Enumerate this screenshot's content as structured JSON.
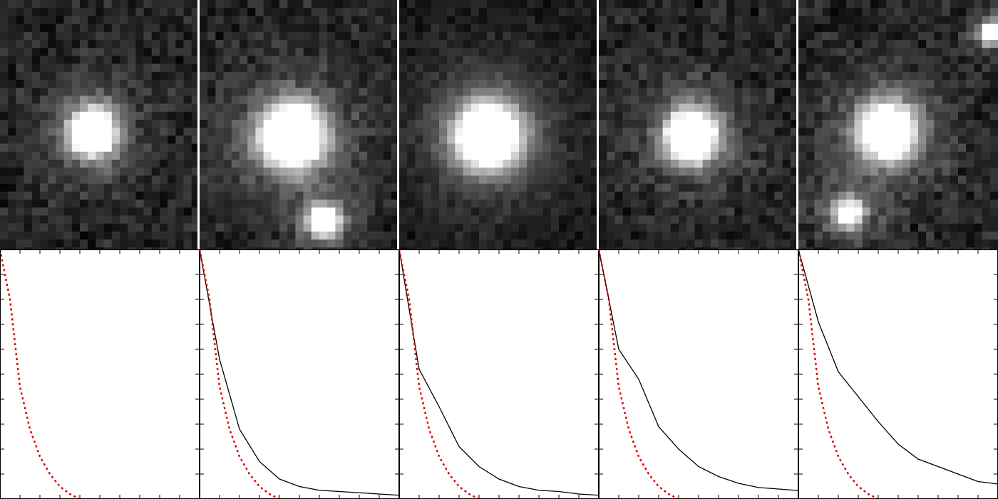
{
  "chart_data": [
    {
      "type": "line",
      "xlim": [
        0,
        10
      ],
      "ylim": [
        0,
        1
      ],
      "xticks": [
        0,
        1,
        2,
        3,
        4,
        5,
        6,
        7,
        8,
        9,
        10
      ],
      "yticks": [
        0,
        0.1,
        0.2,
        0.3,
        0.4,
        0.5,
        0.6,
        0.7,
        0.8,
        0.9,
        1
      ],
      "series": [
        {
          "color": "#e00000",
          "style": "dotted",
          "x": [
            0,
            0.5,
            1,
            1.5,
            2,
            2.5,
            3,
            3.5,
            4
          ],
          "values": [
            1,
            0.8,
            0.45,
            0.28,
            0.17,
            0.1,
            0.05,
            0.02,
            0
          ]
        }
      ]
    },
    {
      "type": "line",
      "xlim": [
        0,
        10
      ],
      "ylim": [
        0,
        1
      ],
      "xticks": [
        0,
        1,
        2,
        3,
        4,
        5,
        6,
        7,
        8,
        9,
        10
      ],
      "yticks": [
        0,
        0.1,
        0.2,
        0.3,
        0.4,
        0.5,
        0.6,
        0.7,
        0.8,
        0.9,
        1
      ],
      "series": [
        {
          "color": "#000000",
          "style": "solid",
          "x": [
            0,
            1,
            2,
            3,
            4,
            5,
            6,
            7,
            8,
            9,
            10
          ],
          "values": [
            1,
            0.56,
            0.28,
            0.15,
            0.08,
            0.05,
            0.035,
            0.03,
            0.025,
            0.02,
            0.015
          ]
        },
        {
          "color": "#e00000",
          "style": "dotted",
          "x": [
            0,
            0.5,
            1,
            1.5,
            2,
            2.5,
            3,
            3.5,
            4
          ],
          "values": [
            1,
            0.8,
            0.45,
            0.28,
            0.17,
            0.1,
            0.05,
            0.02,
            0
          ]
        }
      ]
    },
    {
      "type": "line",
      "xlim": [
        0,
        10
      ],
      "ylim": [
        0,
        1
      ],
      "xticks": [
        0,
        1,
        2,
        3,
        4,
        5,
        6,
        7,
        8,
        9,
        10
      ],
      "yticks": [
        0,
        0.1,
        0.2,
        0.3,
        0.4,
        0.5,
        0.6,
        0.7,
        0.8,
        0.9,
        1
      ],
      "series": [
        {
          "color": "#000000",
          "style": "solid",
          "x": [
            0,
            1,
            2,
            3,
            4,
            5,
            6,
            7,
            8,
            9,
            10
          ],
          "values": [
            1,
            0.52,
            0.37,
            0.21,
            0.13,
            0.08,
            0.05,
            0.035,
            0.03,
            0.02,
            0.015
          ]
        },
        {
          "color": "#e00000",
          "style": "dotted",
          "x": [
            0,
            0.5,
            1,
            1.5,
            2,
            2.5,
            3,
            3.5,
            4
          ],
          "values": [
            1,
            0.8,
            0.45,
            0.28,
            0.17,
            0.1,
            0.05,
            0.02,
            0
          ]
        }
      ]
    },
    {
      "type": "line",
      "xlim": [
        0,
        10
      ],
      "ylim": [
        0,
        1
      ],
      "xticks": [
        0,
        1,
        2,
        3,
        4,
        5,
        6,
        7,
        8,
        9,
        10
      ],
      "yticks": [
        0,
        0.1,
        0.2,
        0.3,
        0.4,
        0.5,
        0.6,
        0.7,
        0.8,
        0.9,
        1
      ],
      "series": [
        {
          "color": "#000000",
          "style": "solid",
          "x": [
            0,
            1,
            2,
            3,
            4,
            5,
            6,
            7,
            8,
            9,
            10
          ],
          "values": [
            1,
            0.6,
            0.48,
            0.29,
            0.2,
            0.13,
            0.09,
            0.063,
            0.046,
            0.04,
            0.034
          ]
        },
        {
          "color": "#e00000",
          "style": "dotted",
          "x": [
            0,
            0.5,
            1,
            1.5,
            2,
            2.5,
            3,
            3.5,
            4
          ],
          "values": [
            1,
            0.8,
            0.45,
            0.28,
            0.17,
            0.1,
            0.05,
            0.02,
            0
          ]
        }
      ]
    },
    {
      "type": "line",
      "xlim": [
        0,
        10
      ],
      "ylim": [
        0,
        1
      ],
      "xticks": [
        0,
        1,
        2,
        3,
        4,
        5,
        6,
        7,
        8,
        9,
        10
      ],
      "yticks": [
        0,
        0.1,
        0.2,
        0.3,
        0.4,
        0.5,
        0.6,
        0.7,
        0.8,
        0.9,
        1
      ],
      "series": [
        {
          "color": "#000000",
          "style": "solid",
          "x": [
            0,
            1,
            2,
            3,
            4,
            5,
            6,
            7,
            8,
            9,
            10
          ],
          "values": [
            1,
            0.71,
            0.51,
            0.41,
            0.31,
            0.22,
            0.16,
            0.13,
            0.1,
            0.07,
            0.06
          ]
        },
        {
          "color": "#e00000",
          "style": "dotted",
          "x": [
            0,
            0.5,
            1,
            1.5,
            2,
            2.5,
            3,
            3.5,
            4
          ],
          "values": [
            1,
            0.8,
            0.45,
            0.28,
            0.17,
            0.1,
            0.05,
            0.02,
            0
          ]
        }
      ]
    }
  ]
}
